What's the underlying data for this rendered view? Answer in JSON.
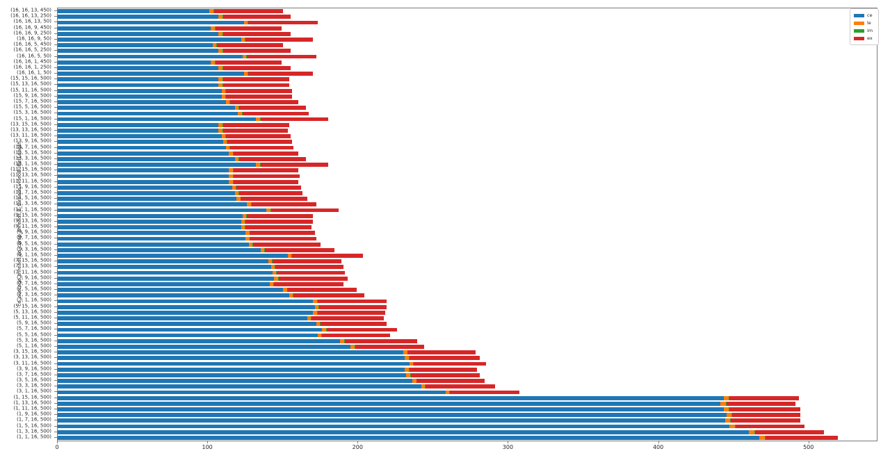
{
  "chart_data": {
    "type": "bar",
    "orientation": "horizontal",
    "stacked": true,
    "title": "",
    "xlabel": "",
    "ylabel": "ce_average_threads,ce_comp_threads,lf_threads,videoBufferLength",
    "xlim": [
      0,
      545
    ],
    "xticks": [
      0,
      100,
      200,
      300,
      400,
      500
    ],
    "grid": false,
    "legend_position": "upper right",
    "categories": [
      "(16, 16, 13, 450)",
      "(16, 16, 13, 250)",
      "(16, 16, 13, 50)",
      "(16, 16, 9, 450)",
      "(16, 16, 9, 250)",
      "(16, 16, 9, 50)",
      "(16, 16, 5, 450)",
      "(16, 16, 5, 250)",
      "(16, 16, 5, 50)",
      "(16, 16, 1, 450)",
      "(16, 16, 1, 250)",
      "(16, 16, 1, 50)",
      "(15, 15, 16, 500)",
      "(15, 13, 16, 500)",
      "(15, 11, 16, 500)",
      "(15, 9, 16, 500)",
      "(15, 7, 16, 500)",
      "(15, 5, 16, 500)",
      "(15, 3, 16, 500)",
      "(15, 1, 16, 500)",
      "(13, 15, 16, 500)",
      "(13, 13, 16, 500)",
      "(13, 11, 16, 500)",
      "(13, 9, 16, 500)",
      "(13, 7, 16, 500)",
      "(13, 5, 16, 500)",
      "(13, 3, 16, 500)",
      "(13, 1, 16, 500)",
      "(11, 15, 16, 500)",
      "(11, 13, 16, 500)",
      "(11, 11, 16, 500)",
      "(11, 9, 16, 500)",
      "(11, 7, 16, 500)",
      "(11, 5, 16, 500)",
      "(11, 3, 16, 500)",
      "(11, 1, 16, 500)",
      "(9, 15, 16, 500)",
      "(9, 13, 16, 500)",
      "(9, 11, 16, 500)",
      "(9, 9, 16, 500)",
      "(9, 7, 16, 500)",
      "(9, 5, 16, 500)",
      "(9, 3, 16, 500)",
      "(9, 1, 16, 500)",
      "(7, 15, 16, 500)",
      "(7, 13, 16, 500)",
      "(7, 11, 16, 500)",
      "(7, 9, 16, 500)",
      "(7, 7, 16, 500)",
      "(7, 5, 16, 500)",
      "(7, 3, 16, 500)",
      "(7, 1, 16, 500)",
      "(5, 15, 16, 500)",
      "(5, 13, 16, 500)",
      "(5, 11, 16, 500)",
      "(5, 9, 16, 500)",
      "(5, 7, 16, 500)",
      "(5, 5, 16, 500)",
      "(5, 3, 16, 500)",
      "(5, 1, 16, 500)",
      "(3, 15, 16, 500)",
      "(3, 13, 16, 500)",
      "(3, 11, 16, 500)",
      "(3, 9, 16, 500)",
      "(3, 7, 16, 500)",
      "(3, 5, 16, 500)",
      "(3, 3, 16, 500)",
      "(3, 1, 16, 500)",
      "(1, 15, 16, 500)",
      "(1, 13, 16, 500)",
      "(1, 11, 16, 500)",
      "(1, 9, 16, 500)",
      "(1, 7, 16, 500)",
      "(1, 5, 16, 500)",
      "(1, 3, 16, 500)",
      "(1, 1, 16, 500)"
    ],
    "series": [
      {
        "name": "ce",
        "color": "#1f77b4",
        "values": [
          101,
          107,
          124,
          102,
          107,
          122,
          103,
          107,
          123,
          102,
          107,
          124,
          107,
          107,
          109,
          109,
          112,
          118,
          120,
          132,
          107,
          107,
          109,
          110,
          112,
          114,
          118,
          132,
          114,
          114,
          114,
          116,
          118,
          119,
          126,
          139,
          123,
          122,
          122,
          125,
          125,
          127,
          135,
          153,
          140,
          142,
          143,
          144,
          141,
          150,
          154,
          170,
          171,
          170,
          166,
          172,
          176,
          173,
          188,
          195,
          230,
          231,
          234,
          231,
          232,
          236,
          242,
          258,
          443,
          441,
          443,
          445,
          444,
          447,
          460,
          467
        ]
      },
      {
        "name": "le",
        "color": "#ff7f0e",
        "values": [
          2.5,
          2.5,
          2.5,
          2.5,
          2.5,
          2.5,
          2.5,
          2.5,
          2.5,
          2.5,
          2.5,
          2.5,
          2.5,
          2.5,
          2.5,
          2.5,
          2.5,
          2.5,
          2.5,
          2.5,
          2.5,
          2.5,
          2.5,
          2.5,
          2.5,
          2.5,
          2.5,
          2.5,
          2.5,
          2.5,
          2.5,
          2.5,
          2.5,
          2.5,
          2.5,
          2.5,
          2.5,
          2.5,
          2.5,
          2.5,
          2.5,
          2.5,
          2.5,
          2.5,
          2.5,
          2.5,
          2.5,
          2.5,
          2.5,
          2.5,
          2.5,
          2.5,
          2.5,
          2.5,
          2.5,
          2.5,
          2.5,
          2.5,
          2.5,
          2.5,
          2.5,
          2.5,
          2.5,
          2.5,
          2.5,
          2.5,
          2.5,
          2.5,
          3.5,
          3.5,
          3.5,
          3.5,
          3.5,
          3.5,
          3.5,
          3.5
        ]
      },
      {
        "name": "im",
        "color": "#2ca02c",
        "values": [
          0.4,
          0.4,
          0.4,
          0.4,
          0.4,
          0.4,
          0.4,
          0.4,
          0.4,
          0.4,
          0.4,
          0.4,
          0.4,
          0.4,
          0.4,
          0.4,
          0.4,
          0.4,
          0.4,
          0.4,
          0.4,
          0.4,
          0.4,
          0.4,
          0.4,
          0.4,
          0.4,
          0.4,
          0.4,
          0.4,
          0.4,
          0.4,
          0.4,
          0.4,
          0.4,
          0.4,
          0.4,
          0.4,
          0.4,
          0.4,
          0.4,
          0.4,
          0.4,
          0.4,
          0.4,
          0.4,
          0.4,
          0.4,
          0.4,
          0.4,
          0.4,
          0.4,
          0.4,
          0.4,
          0.4,
          0.4,
          0.4,
          0.4,
          0.4,
          0.4,
          0.4,
          0.4,
          0.4,
          0.4,
          0.4,
          0.4,
          0.4,
          0.4,
          0.4,
          0.4,
          0.4,
          0.4,
          0.4,
          0.4,
          0.4,
          0.4
        ]
      },
      {
        "name": "ex",
        "color": "#d62728",
        "values": [
          46.1,
          45.1,
          46.1,
          44.1,
          45.1,
          45.1,
          44.1,
          45.1,
          46.1,
          44.1,
          45.1,
          43.1,
          44.1,
          44.1,
          44.1,
          44.1,
          45.1,
          44.1,
          44.1,
          45.1,
          44.1,
          43.1,
          43.1,
          43.1,
          42.1,
          43.1,
          44.1,
          45.1,
          43.1,
          44.1,
          43.1,
          43.1,
          42.1,
          44.1,
          43.1,
          45.1,
          44.1,
          45.1,
          44.1,
          43.1,
          44.1,
          45.1,
          46.1,
          47.1,
          46.1,
          45.1,
          45.1,
          46.1,
          46.1,
          46.1,
          47.1,
          46.1,
          45.1,
          45.1,
          48.1,
          44.1,
          47.1,
          45.1,
          48.1,
          46.1,
          45.1,
          47.1,
          48.1,
          45.1,
          46.1,
          45.1,
          46.1,
          46.1,
          46.1,
          46.1,
          47.1,
          45.1,
          46.1,
          46.1,
          46.1,
          48.1
        ]
      }
    ],
    "legend": {
      "entries": [
        {
          "label": "ce",
          "color": "#1f77b4"
        },
        {
          "label": "le",
          "color": "#ff7f0e"
        },
        {
          "label": "im",
          "color": "#2ca02c"
        },
        {
          "label": "ex",
          "color": "#d62728"
        }
      ]
    }
  }
}
